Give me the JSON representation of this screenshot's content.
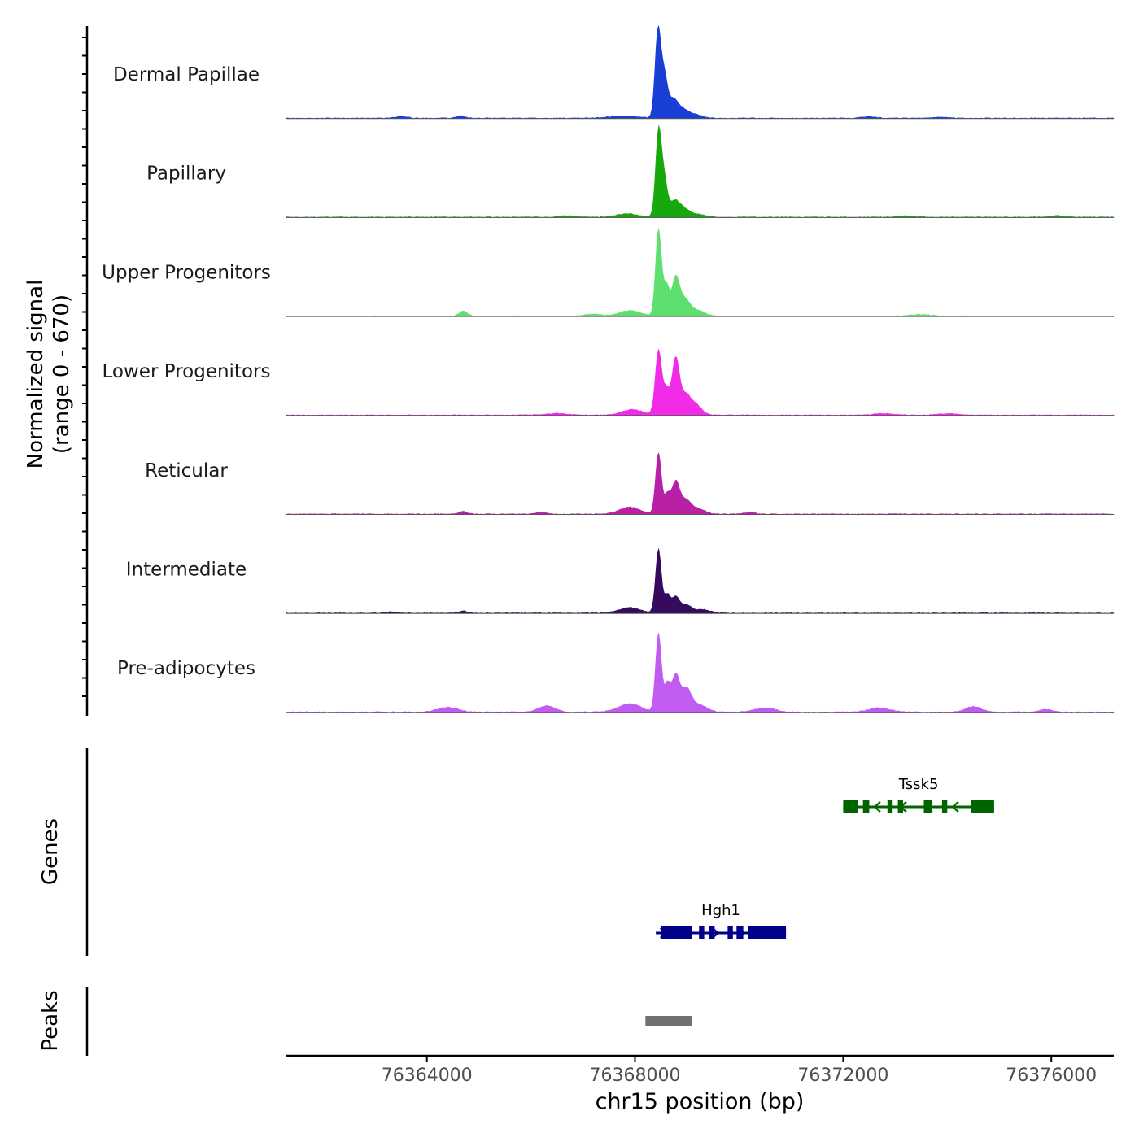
{
  "chart_data": {
    "type": "area",
    "title": "",
    "ylabel_line1": "Normalized signal",
    "ylabel_line2": "(range 0 - 670)",
    "xlabel": "chr15 position (bp)",
    "xlim": [
      76361300,
      76377200
    ],
    "xticks": [
      76364000,
      76368000,
      76372000,
      76376000
    ],
    "xtick_labels": [
      "76364000",
      "76368000",
      "76372000",
      "76376000"
    ],
    "yrange": [
      0,
      670
    ],
    "tracks": [
      {
        "name": "Dermal Papillae",
        "color": "#1a3fd6",
        "peaks": [
          [
            76368440,
            620,
            55
          ],
          [
            76368560,
            290,
            60
          ],
          [
            76368720,
            120,
            90
          ],
          [
            76368900,
            60,
            120
          ],
          [
            76369150,
            25,
            140
          ],
          [
            76367800,
            15,
            300
          ],
          [
            76364650,
            18,
            80
          ],
          [
            76363500,
            12,
            120
          ],
          [
            76372500,
            10,
            150
          ],
          [
            76373900,
            8,
            150
          ]
        ]
      },
      {
        "name": "Papillary",
        "color": "#16a80c",
        "peaks": [
          [
            76368450,
            600,
            55
          ],
          [
            76368560,
            260,
            60
          ],
          [
            76368750,
            100,
            90
          ],
          [
            76368920,
            60,
            120
          ],
          [
            76369200,
            20,
            150
          ],
          [
            76367850,
            25,
            200
          ],
          [
            76366700,
            10,
            150
          ],
          [
            76376100,
            12,
            120
          ],
          [
            76373200,
            8,
            200
          ]
        ]
      },
      {
        "name": "Upper Progenitors",
        "color": "#5ee070",
        "peaks": [
          [
            76368450,
            620,
            55
          ],
          [
            76368600,
            220,
            60
          ],
          [
            76368780,
            260,
            70
          ],
          [
            76368950,
            120,
            100
          ],
          [
            76369200,
            40,
            140
          ],
          [
            76367900,
            40,
            200
          ],
          [
            76364700,
            35,
            80
          ],
          [
            76367200,
            15,
            150
          ],
          [
            76373500,
            12,
            200
          ]
        ]
      },
      {
        "name": "Lower Progenitors",
        "color": "#f22be8",
        "peaks": [
          [
            76368450,
            460,
            60
          ],
          [
            76368600,
            180,
            60
          ],
          [
            76368780,
            400,
            70
          ],
          [
            76368960,
            130,
            90
          ],
          [
            76369150,
            80,
            120
          ],
          [
            76367950,
            40,
            200
          ],
          [
            76366500,
            12,
            200
          ],
          [
            76372800,
            12,
            200
          ],
          [
            76374000,
            10,
            200
          ]
        ]
      },
      {
        "name": "Reticular",
        "color": "#b820a5",
        "peaks": [
          [
            76368450,
            440,
            55
          ],
          [
            76368620,
            140,
            60
          ],
          [
            76368780,
            220,
            70
          ],
          [
            76368960,
            100,
            100
          ],
          [
            76369200,
            40,
            140
          ],
          [
            76367900,
            50,
            200
          ],
          [
            76364700,
            18,
            80
          ],
          [
            76366200,
            12,
            100
          ],
          [
            76370200,
            12,
            100
          ]
        ]
      },
      {
        "name": "Intermediate",
        "color": "#360a5e",
        "peaks": [
          [
            76368450,
            460,
            55
          ],
          [
            76368620,
            130,
            60
          ],
          [
            76368780,
            110,
            70
          ],
          [
            76368980,
            60,
            100
          ],
          [
            76369300,
            25,
            140
          ],
          [
            76367900,
            40,
            200
          ],
          [
            76364700,
            15,
            80
          ],
          [
            76363300,
            10,
            100
          ]
        ]
      },
      {
        "name": "Pre-adipocytes",
        "color": "#c25bf2",
        "peaks": [
          [
            76368450,
            560,
            55
          ],
          [
            76368620,
            200,
            60
          ],
          [
            76368780,
            250,
            70
          ],
          [
            76368980,
            170,
            100
          ],
          [
            76369250,
            50,
            140
          ],
          [
            76367900,
            60,
            220
          ],
          [
            76366300,
            45,
            160
          ],
          [
            76364400,
            35,
            200
          ],
          [
            76374500,
            40,
            150
          ],
          [
            76372700,
            30,
            200
          ],
          [
            76375900,
            20,
            120
          ],
          [
            76370500,
            30,
            200
          ]
        ]
      }
    ],
    "genes": [
      {
        "name": "Tssk5",
        "color": "#006400",
        "start": 76372000,
        "end": 76374900,
        "strand": "-",
        "exons": [
          [
            76372000,
            76372280
          ],
          [
            76372380,
            76372500
          ],
          [
            76372850,
            76372950
          ],
          [
            76373050,
            76373150
          ],
          [
            76373550,
            76373700
          ],
          [
            76373900,
            76374000
          ],
          [
            76374450,
            76374900
          ]
        ]
      },
      {
        "name": "Hgh1",
        "color": "#00008b",
        "start": 76368400,
        "end": 76370900,
        "strand": "+",
        "exons": [
          [
            76368500,
            76369100
          ],
          [
            76369230,
            76369330
          ],
          [
            76369430,
            76369530
          ],
          [
            76369780,
            76369880
          ],
          [
            76369950,
            76370080
          ],
          [
            76370180,
            76370900
          ]
        ]
      }
    ],
    "peaks_region": [
      {
        "start": 76368200,
        "end": 76369100,
        "color": "#707070"
      }
    ],
    "panel_labels": [
      "Genes",
      "Peaks"
    ]
  }
}
